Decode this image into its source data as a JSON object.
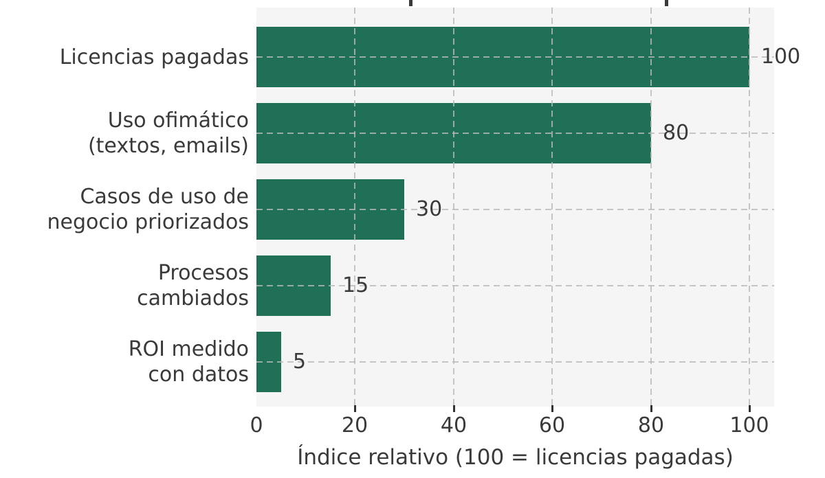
{
  "figure": {
    "background": "#ffffff",
    "plot_background": "#f5f5f6",
    "text_color": "#3a3a3a",
    "grid_color": "#bbbbbb",
    "bar_color": "#1f7057",
    "title_visible_text": ""
  },
  "chart_data": {
    "type": "bar",
    "orientation": "horizontal",
    "title": "",
    "xlabel": "Índice relativo (100 = licencias pagadas)",
    "ylabel": "",
    "x_ticks": [
      0,
      20,
      40,
      60,
      80,
      100
    ],
    "xlim": [
      0,
      105
    ],
    "grid": "dashed gridlines on both axes, drawn above bars",
    "legend": "none",
    "categories": [
      "Licencias pagadas",
      "Uso ofimático (textos, emails)",
      "Casos de uso de negocio priorizados",
      "Procesos cambiados",
      "ROI medido con datos"
    ],
    "values": [
      100,
      80,
      30,
      15,
      5
    ],
    "bars": [
      {
        "label_lines": [
          "Licencias pagadas"
        ],
        "value": 100,
        "value_label": "100"
      },
      {
        "label_lines": [
          "Uso ofimático",
          "(textos, emails)"
        ],
        "value": 80,
        "value_label": "80"
      },
      {
        "label_lines": [
          "Casos de uso de",
          "negocio priorizados"
        ],
        "value": 30,
        "value_label": "30"
      },
      {
        "label_lines": [
          "Procesos",
          "cambiados"
        ],
        "value": 15,
        "value_label": "15"
      },
      {
        "label_lines": [
          "ROI medido",
          "con datos"
        ],
        "value": 5,
        "value_label": "5"
      }
    ]
  }
}
